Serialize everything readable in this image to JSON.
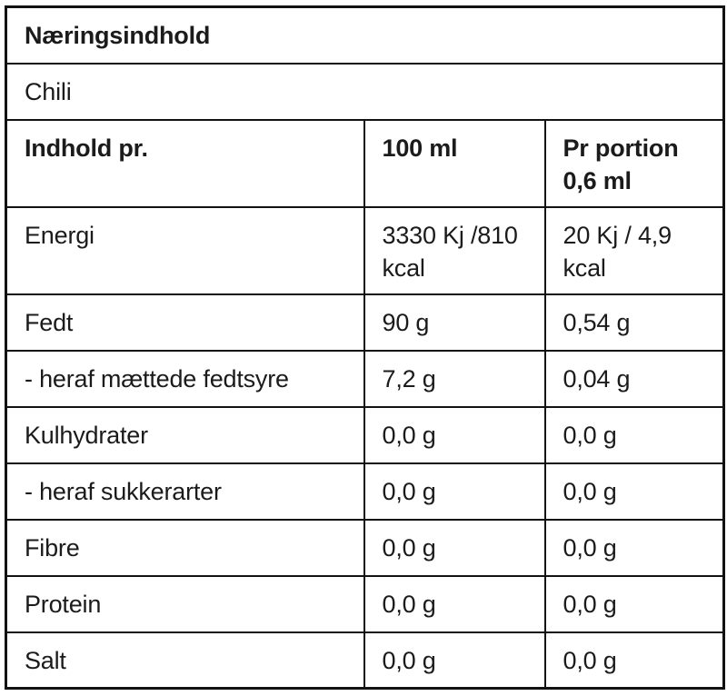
{
  "colors": {
    "border": "#121212",
    "text": "#1b1b1b",
    "background": "#ffffff"
  },
  "table": {
    "title": "Næringsindhold",
    "variant": "Chili",
    "columns": [
      "Indhold pr.",
      "100 ml",
      "Pr portion 0,6 ml"
    ],
    "rows": [
      {
        "label": "Energi",
        "per_100ml": "3330 Kj /810 kcal",
        "per_portion": "20 Kj / 4,9 kcal"
      },
      {
        "label": "Fedt",
        "per_100ml": "90 g",
        "per_portion": "0,54 g"
      },
      {
        "label": "- heraf mættede fedtsyre",
        "per_100ml": "7,2 g",
        "per_portion": "0,04 g"
      },
      {
        "label": "Kulhydrater",
        "per_100ml": "0,0 g",
        "per_portion": "0,0 g"
      },
      {
        "label": "- heraf sukkerarter",
        "per_100ml": "0,0 g",
        "per_portion": "0,0 g"
      },
      {
        "label": "Fibre",
        "per_100ml": "0,0 g",
        "per_portion": "0,0 g"
      },
      {
        "label": "Protein",
        "per_100ml": "0,0 g",
        "per_portion": "0,0 g"
      },
      {
        "label": "Salt",
        "per_100ml": "0,0 g",
        "per_portion": "0,0 g"
      }
    ]
  }
}
